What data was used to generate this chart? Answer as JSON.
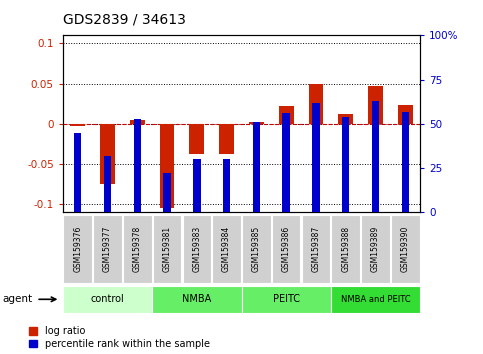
{
  "title": "GDS2839 / 34613",
  "samples": [
    "GSM159376",
    "GSM159377",
    "GSM159378",
    "GSM159381",
    "GSM159383",
    "GSM159384",
    "GSM159385",
    "GSM159386",
    "GSM159387",
    "GSM159388",
    "GSM159389",
    "GSM159390"
  ],
  "log_ratio": [
    -0.002,
    -0.075,
    0.005,
    -0.105,
    -0.038,
    -0.038,
    0.002,
    0.022,
    0.05,
    0.012,
    0.047,
    0.024
  ],
  "percentile_rank": [
    45,
    32,
    53,
    22,
    30,
    30,
    51,
    56,
    62,
    54,
    63,
    57
  ],
  "groups": [
    {
      "label": "control",
      "start": 0,
      "end": 3,
      "color": "#ccffcc"
    },
    {
      "label": "NMBA",
      "start": 3,
      "end": 6,
      "color": "#66ee66"
    },
    {
      "label": "PEITC",
      "start": 6,
      "end": 9,
      "color": "#66ee66"
    },
    {
      "label": "NMBA and PEITC",
      "start": 9,
      "end": 12,
      "color": "#33dd33"
    }
  ],
  "ylim_left": [
    -0.11,
    0.11
  ],
  "ylim_right": [
    0,
    100
  ],
  "yticks_left": [
    -0.1,
    -0.05,
    0,
    0.05,
    0.1
  ],
  "yticks_right": [
    0,
    25,
    50,
    75,
    100
  ],
  "bar_width": 0.5,
  "pct_bar_width": 0.25,
  "log_ratio_color": "#cc2200",
  "percentile_color": "#0000cc",
  "background_color": "#ffffff",
  "zero_line_color": "#cc0000",
  "sample_box_color": "#d0d0d0"
}
